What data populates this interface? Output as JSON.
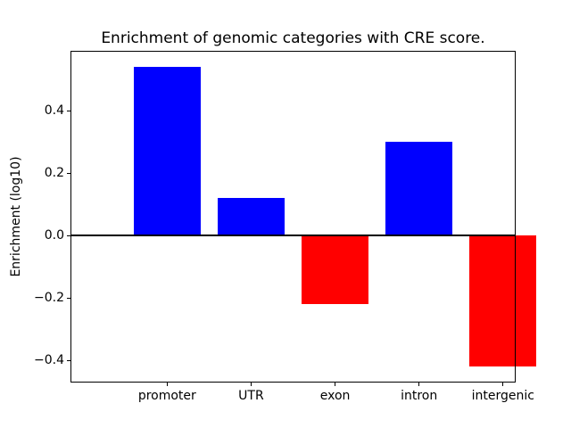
{
  "chart_data": {
    "type": "bar",
    "title": "Enrichment of genomic categories with CRE score.",
    "ylabel": "Enrichment (log10)",
    "xlabel": "",
    "categories": [
      "promoter",
      "UTR",
      "exon",
      "intron",
      "intergenic"
    ],
    "values": [
      0.54,
      0.12,
      -0.22,
      0.3,
      -0.42
    ],
    "bar_colors": [
      "#0000ff",
      "#0000ff",
      "#ff0000",
      "#0000ff",
      "#ff0000"
    ],
    "positive_color": "#0000ff",
    "negative_color": "#ff0000",
    "yticks": [
      {
        "value": 0.4,
        "label": "0.4"
      },
      {
        "value": 0.2,
        "label": "0.2"
      },
      {
        "value": 0.0,
        "label": "0.0"
      },
      {
        "value": -0.2,
        "label": "−0.2"
      },
      {
        "value": -0.4,
        "label": "−0.4"
      }
    ],
    "ylim": [
      -0.468,
      0.59
    ],
    "grid": false,
    "zero_line": true,
    "background_color": "#ffffff",
    "text_color": "#000000"
  }
}
